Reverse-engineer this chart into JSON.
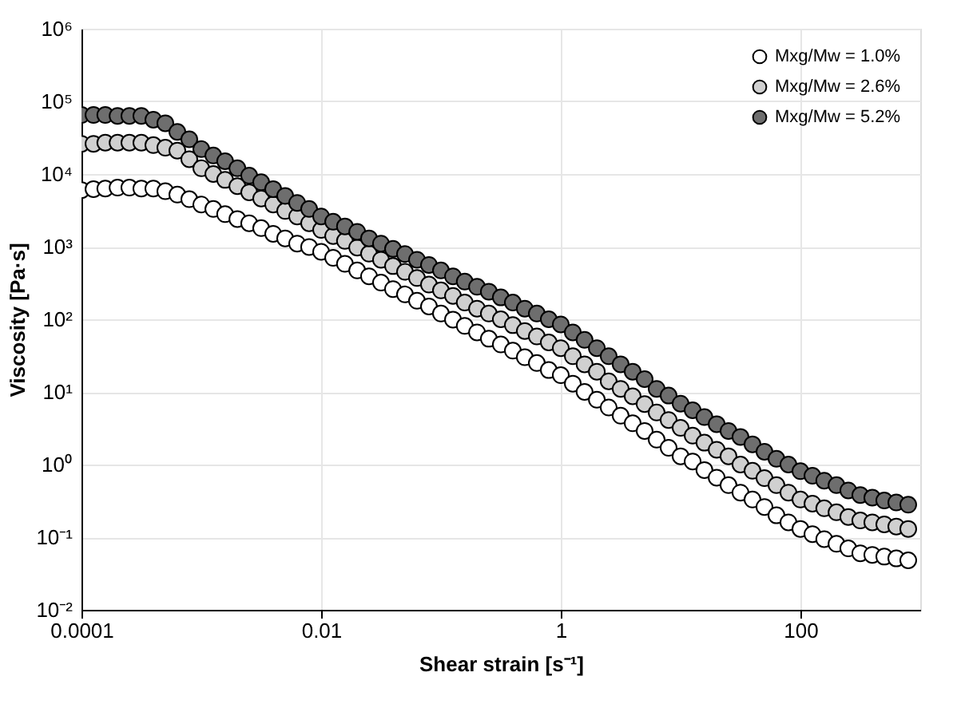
{
  "chart_data": {
    "type": "scatter",
    "xlabel": "Shear strain [s⁻¹]",
    "ylabel": "Viscosity [Pa·s]",
    "log": "xy",
    "grid": true,
    "legend": "top right",
    "marker": "circle",
    "xlim": [
      0.0001,
      1000
    ],
    "xticks": [
      0.0001,
      0.01,
      1,
      100
    ],
    "ylim": [
      0.01,
      1000000
    ],
    "yticks": [
      {
        "value": 0.01,
        "label": "10⁻²"
      },
      {
        "value": 0.1,
        "label": "10⁻¹"
      },
      {
        "value": 1,
        "label": "10⁰"
      },
      {
        "value": 10,
        "label": "10¹"
      },
      {
        "value": 100,
        "label": "10²"
      },
      {
        "value": 1000,
        "label": "10³"
      },
      {
        "value": 10000,
        "label": "10⁴"
      },
      {
        "value": 100000,
        "label": "10⁵"
      },
      {
        "value": 1000000,
        "label": "10⁶"
      }
    ],
    "x": [
      0.0001,
      0.000126,
      0.000158,
      0.0002,
      0.000251,
      0.000316,
      0.000398,
      0.000501,
      0.000631,
      0.000794,
      0.001,
      0.00126,
      0.00158,
      0.002,
      0.00251,
      0.00316,
      0.00398,
      0.00501,
      0.00631,
      0.00794,
      0.01,
      0.0126,
      0.0158,
      0.02,
      0.0251,
      0.0316,
      0.0398,
      0.0501,
      0.0631,
      0.0794,
      0.1,
      0.126,
      0.158,
      0.2,
      0.251,
      0.316,
      0.398,
      0.501,
      0.631,
      0.794,
      1,
      1.26,
      1.58,
      2.0,
      2.51,
      3.16,
      3.98,
      5.01,
      6.31,
      7.94,
      10,
      12.6,
      15.8,
      20,
      25.1,
      31.6,
      39.8,
      50.1,
      63.1,
      79.4,
      100,
      126,
      158,
      200,
      251,
      316,
      398,
      501,
      631,
      794
    ],
    "series": [
      {
        "name": "Mxg/Mw = 1.0%",
        "color": "#ffffff",
        "values": [
          6000,
          6200,
          6300,
          6500,
          6500,
          6300,
          6300,
          5800,
          5200,
          4500,
          3800,
          3300,
          2800,
          2400,
          2100,
          1800,
          1500,
          1300,
          1100,
          990,
          850,
          700,
          580,
          470,
          390,
          320,
          260,
          220,
          180,
          150,
          120,
          99,
          81,
          66,
          54,
          45,
          37,
          30,
          25,
          20,
          17,
          13,
          10,
          7.8,
          6.1,
          4.7,
          3.7,
          2.9,
          2.2,
          1.7,
          1.3,
          1.1,
          0.84,
          0.66,
          0.52,
          0.41,
          0.33,
          0.26,
          0.2,
          0.16,
          0.13,
          0.11,
          0.094,
          0.081,
          0.07,
          0.06,
          0.057,
          0.054,
          0.051,
          0.048
        ]
      },
      {
        "name": "Mxg/Mw = 2.6%",
        "color": "#d0d0d0",
        "values": [
          26000,
          26000,
          27000,
          27000,
          27000,
          27000,
          25000,
          23000,
          21000,
          16000,
          12000,
          10000,
          8300,
          6800,
          5600,
          4600,
          3800,
          3100,
          2600,
          2100,
          1700,
          1400,
          1200,
          970,
          800,
          660,
          540,
          450,
          370,
          300,
          250,
          210,
          170,
          140,
          120,
          100,
          83,
          69,
          58,
          48,
          40,
          31,
          24,
          19,
          14,
          11,
          8.7,
          6.8,
          5.2,
          4.1,
          3.2,
          2.5,
          2.0,
          1.6,
          1.3,
          1.0,
          0.82,
          0.65,
          0.52,
          0.41,
          0.33,
          0.29,
          0.25,
          0.22,
          0.19,
          0.17,
          0.16,
          0.15,
          0.14,
          0.13
        ]
      },
      {
        "name": "Mxg/Mw = 5.2%",
        "color": "#6e6e6e",
        "values": [
          65000,
          65000,
          65000,
          63000,
          63000,
          63000,
          56000,
          50000,
          38000,
          30000,
          22000,
          18000,
          15000,
          12000,
          9500,
          7700,
          6200,
          5000,
          4000,
          3300,
          2600,
          2200,
          1900,
          1600,
          1300,
          1100,
          930,
          790,
          660,
          560,
          470,
          390,
          330,
          280,
          240,
          200,
          170,
          140,
          120,
          100,
          85,
          66,
          52,
          40,
          31,
          24,
          19,
          15,
          11,
          8.9,
          6.9,
          5.6,
          4.5,
          3.6,
          2.9,
          2.4,
          1.9,
          1.5,
          1.2,
          1.0,
          0.81,
          0.7,
          0.6,
          0.52,
          0.44,
          0.38,
          0.35,
          0.32,
          0.3,
          0.28
        ]
      }
    ]
  }
}
